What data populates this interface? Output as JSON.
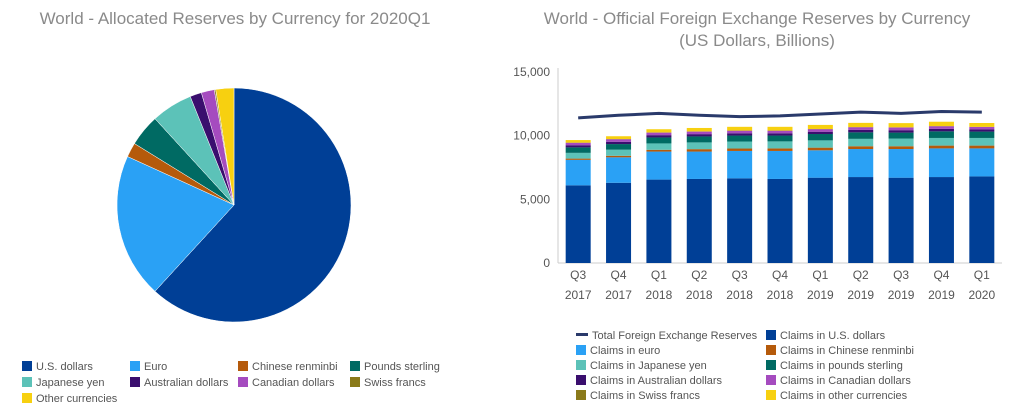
{
  "chart_data": [
    {
      "type": "pie",
      "title": "World - Allocated Reserves by Currency for 2020Q1",
      "labels": [
        "U.S. dollars",
        "Euro",
        "Chinese renminbi",
        "Pounds sterling",
        "Japanese yen",
        "Australian dollars",
        "Canadian dollars",
        "Swiss francs",
        "Other currencies"
      ],
      "values": [
        61.8,
        20.0,
        2.0,
        4.4,
        5.7,
        1.6,
        1.8,
        0.2,
        2.5
      ],
      "colors": [
        "#003f96",
        "#2aa1f5",
        "#b55a0b",
        "#006a63",
        "#5cc2b8",
        "#3a0e6e",
        "#a54bbf",
        "#8a7a1a",
        "#f7d010"
      ],
      "legend_position": "bottom"
    },
    {
      "type": "bar",
      "stacked": true,
      "title": "World - Official Foreign Exchange Reserves by Currency",
      "subtitle": "(US Dollars, Billions)",
      "categories": [
        "Q3 2017",
        "Q4 2017",
        "Q1 2018",
        "Q2 2018",
        "Q3 2018",
        "Q4 2018",
        "Q1 2019",
        "Q2 2019",
        "Q3 2019",
        "Q4 2019",
        "Q1 2020"
      ],
      "category_lines": [
        [
          "Q3",
          "2017"
        ],
        [
          "Q4",
          "2017"
        ],
        [
          "Q1",
          "2018"
        ],
        [
          "Q2",
          "2018"
        ],
        [
          "Q3",
          "2018"
        ],
        [
          "Q4",
          "2018"
        ],
        [
          "Q1",
          "2019"
        ],
        [
          "Q2",
          "2019"
        ],
        [
          "Q3",
          "2019"
        ],
        [
          "Q4",
          "2019"
        ],
        [
          "Q1",
          "2020"
        ]
      ],
      "ylim": [
        0,
        15000
      ],
      "yticks": [
        0,
        5000,
        10000,
        15000
      ],
      "ytick_labels": [
        "0",
        "5,000",
        "10,000",
        "15,000"
      ],
      "series": [
        {
          "name": "Claims in U.S. dollars",
          "color": "#003f96",
          "values": [
            6100,
            6300,
            6550,
            6600,
            6650,
            6600,
            6700,
            6750,
            6700,
            6750,
            6800
          ]
        },
        {
          "name": "Claims in euro",
          "color": "#2aa1f5",
          "values": [
            2000,
            2000,
            2200,
            2150,
            2150,
            2200,
            2150,
            2200,
            2250,
            2250,
            2200
          ]
        },
        {
          "name": "Claims in Chinese renminbi",
          "color": "#b55a0b",
          "values": [
            100,
            120,
            140,
            190,
            190,
            200,
            210,
            220,
            220,
            220,
            220
          ]
        },
        {
          "name": "Claims in Japanese yen",
          "color": "#5cc2b8",
          "values": [
            450,
            480,
            500,
            530,
            550,
            550,
            570,
            580,
            600,
            600,
            600
          ]
        },
        {
          "name": "Claims in pounds sterling",
          "color": "#006a63",
          "values": [
            430,
            440,
            470,
            470,
            470,
            460,
            500,
            510,
            470,
            520,
            500
          ]
        },
        {
          "name": "Claims in Australian dollars",
          "color": "#3a0e6e",
          "values": [
            170,
            180,
            180,
            180,
            180,
            180,
            180,
            190,
            190,
            190,
            170
          ]
        },
        {
          "name": "Claims in Canadian dollars",
          "color": "#a54bbf",
          "values": [
            190,
            200,
            200,
            200,
            200,
            200,
            200,
            210,
            210,
            210,
            190
          ]
        },
        {
          "name": "Claims in Swiss francs",
          "color": "#8a7a1a",
          "values": [
            15,
            15,
            15,
            15,
            15,
            15,
            15,
            15,
            15,
            15,
            15
          ]
        },
        {
          "name": "Claims in other currencies",
          "color": "#f7d010",
          "values": [
            200,
            220,
            250,
            270,
            290,
            290,
            320,
            330,
            330,
            340,
            300
          ]
        }
      ],
      "line_series": {
        "name": "Total Foreign Exchange Reserves",
        "color": "#2a3a6b",
        "values": [
          11400,
          11600,
          11750,
          11600,
          11500,
          11550,
          11700,
          11850,
          11750,
          11900,
          11850
        ]
      },
      "legend_position": "bottom"
    }
  ]
}
